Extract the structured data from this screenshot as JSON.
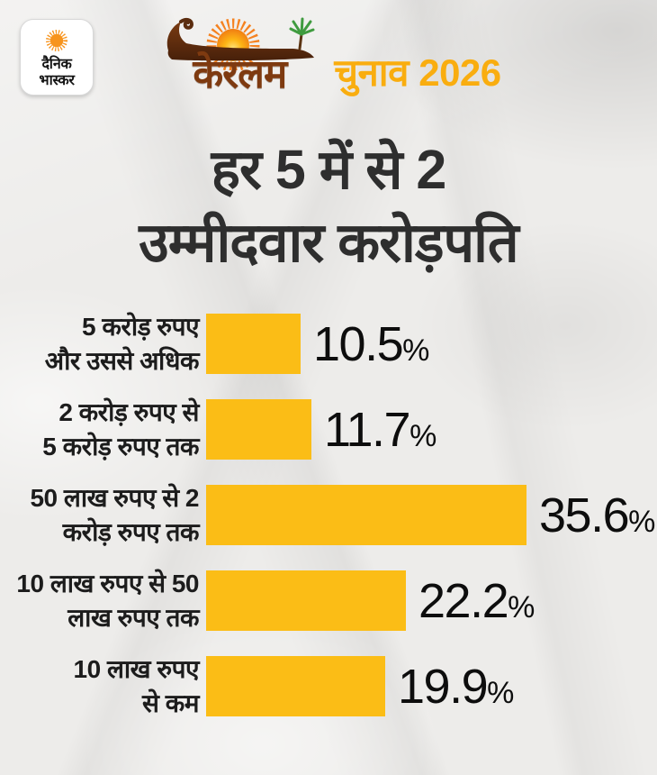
{
  "header": {
    "brand": {
      "text": "दैनिक\nभास्कर",
      "sun_color": "#F7941D"
    },
    "logo": {
      "title": "केरलम",
      "subtitle": "चुनाव 2026",
      "title_color": "#7e3a10",
      "subtitle_color": "#f9ad0f"
    }
  },
  "title": "हर 5 में से 2\nउम्मीदवार करोड़पति",
  "chart_data": {
    "type": "bar",
    "orientation": "horizontal",
    "title": "हर 5 में से 2 उम्मीदवार करोड़पति",
    "unit": "%",
    "bar_color": "#fbbd16",
    "xlim": [
      0,
      40
    ],
    "categories": [
      "5 करोड़ रुपए और उससे अधिक",
      "2 करोड़ रुपए से 5 करोड़ रुपए तक",
      "50 लाख रुपए से 2 करोड़ रुपए तक",
      "10 लाख रुपए से 50 लाख रुपए तक",
      "10 लाख रुपए से कम"
    ],
    "values": [
      10.5,
      11.7,
      35.6,
      22.2,
      19.9
    ],
    "rows": [
      {
        "label": "5 करोड़ रुपए\nऔर उससे अधिक",
        "value": 10.5
      },
      {
        "label": "2 करोड़ रुपए से\n5 करोड़ रुपए तक",
        "value": 11.7
      },
      {
        "label": "50 लाख रुपए से 2\nकरोड़ रुपए तक",
        "value": 35.6
      },
      {
        "label": "10 लाख रुपए से 50\nलाख रुपए तक",
        "value": 22.2
      },
      {
        "label": "10 लाख रुपए\nसे कम",
        "value": 19.9
      }
    ]
  }
}
